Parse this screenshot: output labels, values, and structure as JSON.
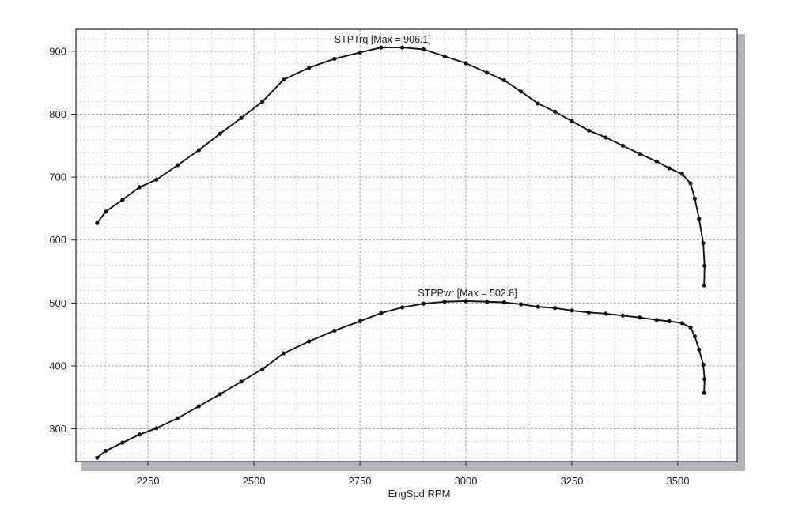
{
  "chart_data": {
    "type": "line",
    "title": "",
    "xlabel": "EngSpd  RPM",
    "ylabel": "",
    "xlim": [
      2080,
      3640
    ],
    "ylim": [
      248,
      935
    ],
    "x_ticks": [
      2250,
      2500,
      2750,
      3000,
      3250,
      3500
    ],
    "y_ticks": [
      300,
      400,
      500,
      600,
      700,
      800,
      900
    ],
    "x_minor_step": 50,
    "y_minor_step": 20,
    "grid": true,
    "legend": "none",
    "colors": {
      "line": "#111111",
      "plot_background": "#fdfdfd",
      "grid_major": "#9a9aa8",
      "grid_minor": "#c9c9d2",
      "shadow": "#b7b3bc"
    },
    "series": [
      {
        "name": "STPTrq",
        "label": "STPTrq [Max = 906.1]",
        "label_anchor": [
          2800,
          906.1
        ],
        "points": [
          [
            2130,
            627
          ],
          [
            2150,
            645
          ],
          [
            2190,
            664
          ],
          [
            2230,
            684
          ],
          [
            2270,
            696
          ],
          [
            2320,
            719
          ],
          [
            2370,
            743
          ],
          [
            2420,
            769
          ],
          [
            2470,
            794
          ],
          [
            2520,
            820
          ],
          [
            2570,
            855
          ],
          [
            2630,
            874
          ],
          [
            2690,
            888
          ],
          [
            2750,
            898
          ],
          [
            2800,
            906
          ],
          [
            2850,
            906
          ],
          [
            2900,
            903
          ],
          [
            2950,
            892
          ],
          [
            3000,
            881
          ],
          [
            3050,
            866
          ],
          [
            3090,
            854
          ],
          [
            3130,
            836
          ],
          [
            3170,
            817
          ],
          [
            3210,
            804
          ],
          [
            3250,
            789
          ],
          [
            3290,
            774
          ],
          [
            3330,
            763
          ],
          [
            3370,
            750
          ],
          [
            3410,
            737
          ],
          [
            3450,
            725
          ],
          [
            3480,
            714
          ],
          [
            3510,
            705
          ],
          [
            3530,
            690
          ],
          [
            3540,
            666
          ],
          [
            3550,
            634
          ],
          [
            3560,
            595
          ],
          [
            3563,
            559
          ],
          [
            3562,
            528
          ]
        ]
      },
      {
        "name": "STPPwr",
        "label": "STPPwr [Max = 502.8]",
        "label_anchor": [
          3000,
          502.8
        ],
        "points": [
          [
            2130,
            254
          ],
          [
            2150,
            265
          ],
          [
            2190,
            278
          ],
          [
            2230,
            291
          ],
          [
            2270,
            301
          ],
          [
            2320,
            317
          ],
          [
            2370,
            336
          ],
          [
            2420,
            355
          ],
          [
            2470,
            375
          ],
          [
            2520,
            395
          ],
          [
            2570,
            420
          ],
          [
            2630,
            439
          ],
          [
            2690,
            456
          ],
          [
            2750,
            471
          ],
          [
            2800,
            484
          ],
          [
            2850,
            493
          ],
          [
            2900,
            499
          ],
          [
            2950,
            502
          ],
          [
            3000,
            503
          ],
          [
            3050,
            502
          ],
          [
            3090,
            501
          ],
          [
            3130,
            498
          ],
          [
            3170,
            494
          ],
          [
            3210,
            492
          ],
          [
            3250,
            488
          ],
          [
            3290,
            485
          ],
          [
            3330,
            483
          ],
          [
            3370,
            480
          ],
          [
            3410,
            477
          ],
          [
            3450,
            473
          ],
          [
            3480,
            471
          ],
          [
            3510,
            468
          ],
          [
            3530,
            461
          ],
          [
            3540,
            447
          ],
          [
            3550,
            426
          ],
          [
            3560,
            402
          ],
          [
            3563,
            379
          ],
          [
            3562,
            357
          ]
        ]
      }
    ]
  }
}
